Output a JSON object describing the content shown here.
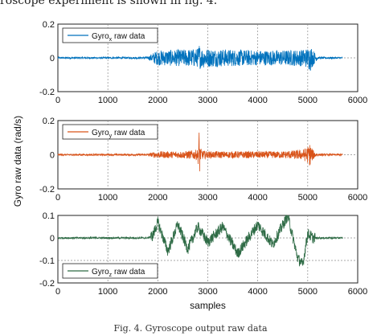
{
  "top_text": "roscope experiment is shown in fig. 4.",
  "caption": "Fig. 4. Gyroscope output raw data",
  "chart_data": [
    {
      "type": "line",
      "ylabel": "",
      "xlabel": "",
      "xlim": [
        0,
        6000
      ],
      "ylim": [
        -0.2,
        0.2
      ],
      "xticks": [
        "0",
        "1000",
        "2000",
        "3000",
        "4000",
        "5000",
        "6000"
      ],
      "yticks": [
        "-0.2",
        "0",
        "0.2"
      ],
      "grid": true,
      "legend_position": "top-left",
      "series": [
        {
          "name": "Gyro",
          "name_sub": "x",
          "name_suffix": " raw data",
          "color": "#0072BD",
          "x": [
            0,
            1000,
            1800,
            1900,
            2000,
            2500,
            2800,
            2830,
            2850,
            2900,
            3000,
            3500,
            4000,
            4500,
            4900,
            5000,
            5050,
            5100,
            5200,
            5700
          ],
          "amplitude": [
            0.005,
            0.005,
            0.006,
            0.03,
            0.045,
            0.05,
            0.055,
            0.09,
            0.06,
            0.06,
            0.055,
            0.05,
            0.045,
            0.045,
            0.05,
            0.06,
            0.08,
            0.05,
            0.006,
            0.005
          ]
        }
      ]
    },
    {
      "type": "line",
      "ylabel": "Gyro raw data (rad/s)",
      "xlabel": "",
      "xlim": [
        0,
        6000
      ],
      "ylim": [
        -0.2,
        0.2
      ],
      "xticks": [
        "0",
        "1000",
        "2000",
        "3000",
        "4000",
        "5000",
        "6000"
      ],
      "yticks": [
        "-0.2",
        "0",
        "0.2"
      ],
      "grid": true,
      "legend_position": "top-left",
      "series": [
        {
          "name": "Gyro",
          "name_sub": "y",
          "name_suffix": " raw data",
          "color": "#D95319",
          "x": [
            0,
            1000,
            1800,
            1900,
            2000,
            2500,
            2800,
            2830,
            2850,
            2900,
            3000,
            3500,
            4000,
            4500,
            4900,
            5000,
            5050,
            5100,
            5200,
            5700
          ],
          "amplitude": [
            0.005,
            0.005,
            0.006,
            0.015,
            0.02,
            0.02,
            0.03,
            0.17,
            0.04,
            0.025,
            0.02,
            0.02,
            0.02,
            0.02,
            0.03,
            0.05,
            0.07,
            0.03,
            0.006,
            0.005
          ]
        }
      ]
    },
    {
      "type": "line",
      "ylabel": "",
      "xlabel": "samples",
      "xlim": [
        0,
        6000
      ],
      "ylim": [
        -0.2,
        0.1
      ],
      "xticks": [
        "0",
        "1000",
        "2000",
        "3000",
        "4000",
        "5000",
        "6000"
      ],
      "yticks": [
        "-0.2",
        "-0.1",
        "0",
        "0.1"
      ],
      "grid": true,
      "legend_position": "bottom-left",
      "series": [
        {
          "name": "Gyro",
          "name_sub": "z",
          "name_suffix": " raw data",
          "color": "#2E6B45",
          "x": [
            0,
            1000,
            1800,
            1900,
            2000,
            2200,
            2400,
            2600,
            2800,
            3000,
            3300,
            3600,
            4000,
            4300,
            4600,
            4800,
            4900,
            5000,
            5100,
            5700
          ],
          "y": [
            0,
            0,
            0,
            0.01,
            0.07,
            -0.06,
            0.06,
            -0.05,
            0.05,
            -0.02,
            0.05,
            -0.07,
            0.06,
            -0.03,
            0.1,
            -0.09,
            -0.12,
            0.02,
            0,
            0
          ]
        }
      ]
    }
  ]
}
